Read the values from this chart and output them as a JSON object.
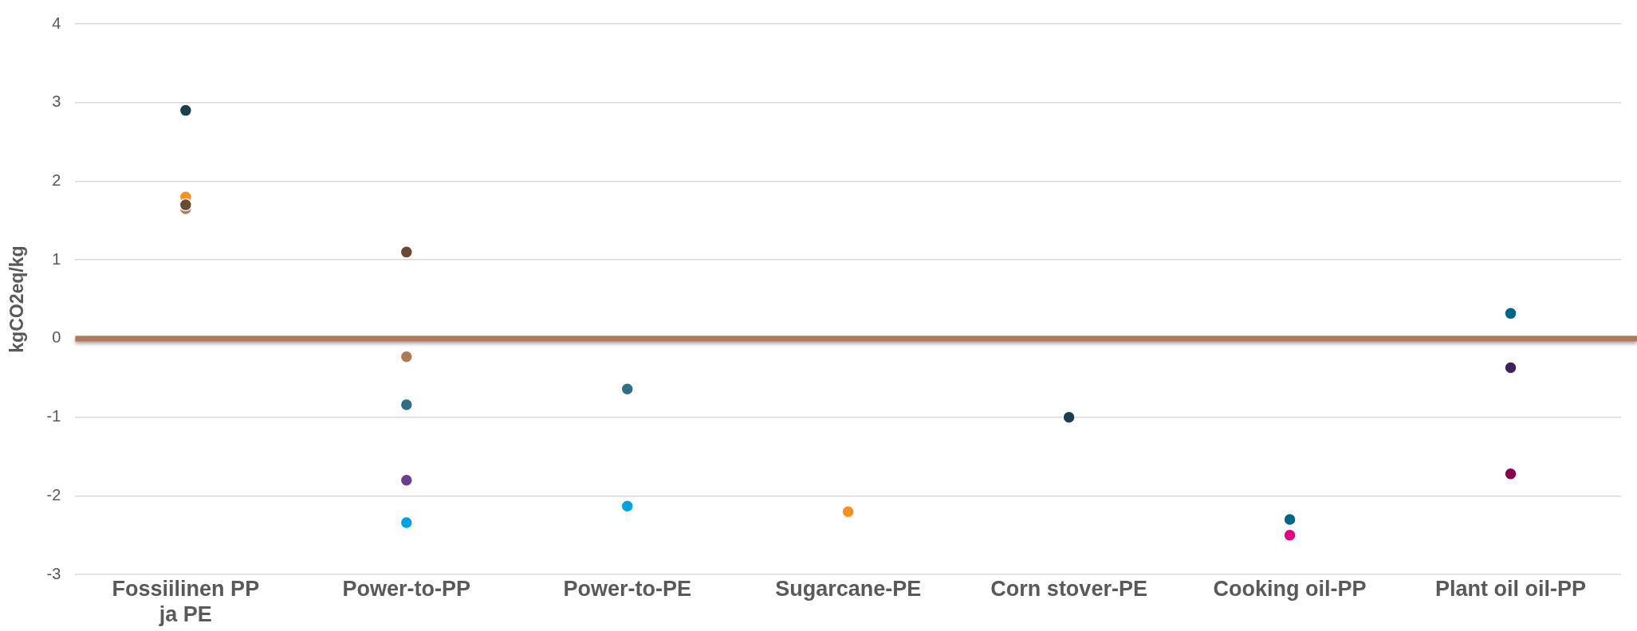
{
  "chart_data": {
    "type": "scatter",
    "ylabel": "kgCO2eq/kg",
    "categories": [
      "Fossiilinen PP ja PE",
      "Power-to-PP",
      "Power-to-PE",
      "Sugarcane-PE",
      "Corn stover-PE",
      "Cooking oil-PP",
      "Plant oil oil-PP"
    ],
    "series": [
      {
        "x": [
          "Fossiilinen PP ja PE",
          "Fossiilinen PP ja PE",
          "Fossiilinen PP ja PE",
          "Fossiilinen PP ja PE",
          "Power-to-PP",
          "Power-to-PP",
          "Power-to-PP",
          "Power-to-PP",
          "Power-to-PP",
          "Power-to-PE",
          "Power-to-PE",
          "Sugarcane-PE",
          "Corn stover-PE",
          "Cooking oil-PP",
          "Cooking oil-PP",
          "Plant oil oil-PP",
          "Plant oil oil-PP",
          "Plant oil oil-PP"
        ],
        "values": [
          2.9,
          1.8,
          1.65,
          1.7,
          1.1,
          -0.23,
          -0.84,
          -1.8,
          -2.34,
          -0.64,
          -2.13,
          -2.2,
          -1.0,
          -2.3,
          -2.5,
          0.32,
          -0.37,
          -1.72
        ],
        "colors": [
          "#1b3f4e",
          "#f39123",
          "#b07a5a",
          "#6b4a33",
          "#6b4a33",
          "#b07a5a",
          "#2e6e86",
          "#6a3d8f",
          "#00a3e0",
          "#2e6e86",
          "#00a3e0",
          "#f39123",
          "#1b3f4e",
          "#006688",
          "#e6007e",
          "#006688",
          "#3b2459",
          "#8a004b"
        ]
      }
    ],
    "ylim": [
      -3,
      4
    ],
    "yticks": [
      -3,
      -2,
      -1,
      0,
      1,
      2,
      3,
      4
    ],
    "grid": "y",
    "marker": "circle",
    "legend": false,
    "ref_lines": [
      {
        "axis": "y",
        "value": 0,
        "color": "#b07a5a"
      }
    ]
  }
}
